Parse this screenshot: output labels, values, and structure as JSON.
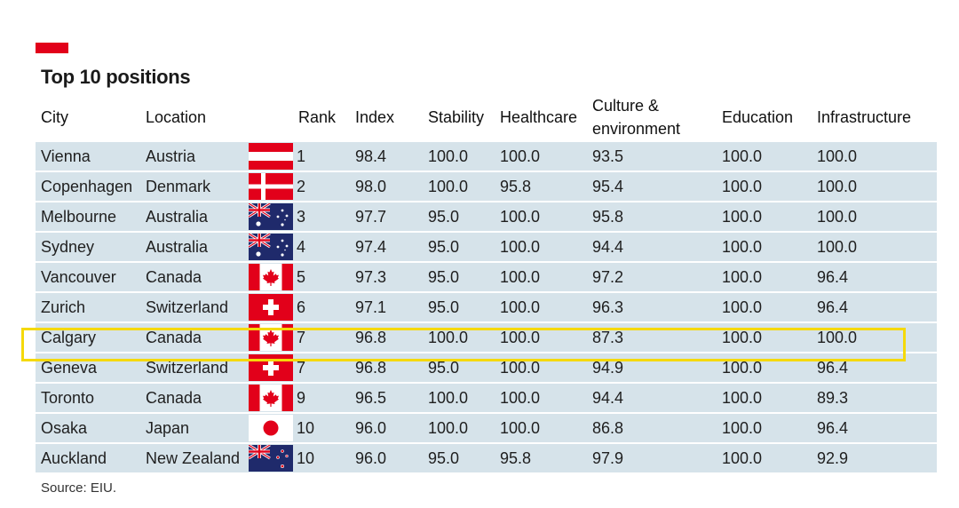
{
  "title": "Top 10 positions",
  "source": "Source: EIU.",
  "colors": {
    "accent": "#e2001a",
    "row_bg": "#d6e3ea",
    "highlight": "#f5d90a"
  },
  "chart_data": {
    "type": "table",
    "columns": [
      "City",
      "Location",
      "",
      "Rank",
      "Index",
      "Stability",
      "Healthcare",
      "Culture & environment",
      "Education",
      "Infrastructure"
    ],
    "rows": [
      {
        "city": "Vienna",
        "location": "Austria",
        "flag": "austria-flag",
        "rank": "1",
        "index": "98.4",
        "stability": "100.0",
        "healthcare": "100.0",
        "culture": "93.5",
        "education": "100.0",
        "infrastructure": "100.0"
      },
      {
        "city": "Copenhagen",
        "location": "Denmark",
        "flag": "denmark-flag",
        "rank": "2",
        "index": "98.0",
        "stability": "100.0",
        "healthcare": "95.8",
        "culture": "95.4",
        "education": "100.0",
        "infrastructure": "100.0"
      },
      {
        "city": "Melbourne",
        "location": "Australia",
        "flag": "australia-flag",
        "rank": "3",
        "index": "97.7",
        "stability": "95.0",
        "healthcare": "100.0",
        "culture": "95.8",
        "education": "100.0",
        "infrastructure": "100.0"
      },
      {
        "city": "Sydney",
        "location": "Australia",
        "flag": "australia-flag",
        "rank": "4",
        "index": "97.4",
        "stability": "95.0",
        "healthcare": "100.0",
        "culture": "94.4",
        "education": "100.0",
        "infrastructure": "100.0"
      },
      {
        "city": "Vancouver",
        "location": "Canada",
        "flag": "canada-flag",
        "rank": "5",
        "index": "97.3",
        "stability": "95.0",
        "healthcare": "100.0",
        "culture": "97.2",
        "education": "100.0",
        "infrastructure": "96.4"
      },
      {
        "city": "Zurich",
        "location": "Switzerland",
        "flag": "switzerland-flag",
        "rank": "6",
        "index": "97.1",
        "stability": "95.0",
        "healthcare": "100.0",
        "culture": "96.3",
        "education": "100.0",
        "infrastructure": "96.4"
      },
      {
        "city": "Calgary",
        "location": "Canada",
        "flag": "canada-flag",
        "rank": "7",
        "index": "96.8",
        "stability": "100.0",
        "healthcare": "100.0",
        "culture": "87.3",
        "education": "100.0",
        "infrastructure": "100.0",
        "highlighted": true
      },
      {
        "city": "Geneva",
        "location": "Switzerland",
        "flag": "switzerland-flag",
        "rank": "7",
        "index": "96.8",
        "stability": "95.0",
        "healthcare": "100.0",
        "culture": "94.9",
        "education": "100.0",
        "infrastructure": "96.4"
      },
      {
        "city": "Toronto",
        "location": "Canada",
        "flag": "canada-flag",
        "rank": "9",
        "index": "96.5",
        "stability": "100.0",
        "healthcare": "100.0",
        "culture": "94.4",
        "education": "100.0",
        "infrastructure": "89.3"
      },
      {
        "city": "Osaka",
        "location": "Japan",
        "flag": "japan-flag",
        "rank": "10",
        "index": "96.0",
        "stability": "100.0",
        "healthcare": "100.0",
        "culture": "86.8",
        "education": "100.0",
        "infrastructure": "96.4"
      },
      {
        "city": "Auckland",
        "location": "New Zealand",
        "flag": "new-zealand-flag",
        "rank": "10",
        "index": "96.0",
        "stability": "95.0",
        "healthcare": "95.8",
        "culture": "97.9",
        "education": "100.0",
        "infrastructure": "92.9"
      }
    ]
  }
}
